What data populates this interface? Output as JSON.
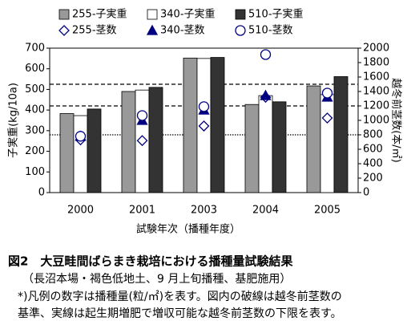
{
  "chart_data": {
    "type": "bar",
    "categories": [
      "2000",
      "2001",
      "2003",
      "2004",
      "2005"
    ],
    "x_label": "試験年次（播種年度）",
    "y_label": "子実重(kg/10a)",
    "y2_label": "越冬前茎数(本/㎡)",
    "ylim": [
      0,
      700
    ],
    "yticks": [
      0,
      100,
      200,
      300,
      400,
      500,
      600,
      700
    ],
    "y2lim": [
      0,
      2000
    ],
    "y2ticks": [
      0,
      200,
      400,
      600,
      800,
      1000,
      1200,
      1400,
      1600,
      1800,
      2000
    ],
    "series": [
      {
        "name": "255-子実重",
        "type": "bar",
        "color": "#999999",
        "values": [
          383,
          490,
          652,
          427,
          517
        ]
      },
      {
        "name": "340-子実重",
        "type": "bar",
        "color": "#ffffff",
        "values": [
          373,
          497,
          650,
          470,
          475
        ]
      },
      {
        "name": "510-子実重",
        "type": "bar",
        "color": "#333333",
        "values": [
          405,
          510,
          655,
          440,
          562
        ]
      },
      {
        "name": "255-茎数",
        "type": "scatter",
        "marker": "diamond",
        "color": "#000080",
        "axis": "y2",
        "values": [
          730,
          720,
          922,
          1320,
          1033
        ]
      },
      {
        "name": "340-茎数",
        "type": "scatter",
        "marker": "triangle",
        "color": "#000080",
        "axis": "y2",
        "values": [
          780,
          1000,
          1144,
          1344,
          1322
        ]
      },
      {
        "name": "510-茎数",
        "type": "scatter",
        "marker": "circle",
        "color": "#000080",
        "axis": "y2",
        "values": [
          780,
          1067,
          1190,
          1911,
          1378
        ]
      }
    ],
    "reference_lines": [
      {
        "axis": "y2",
        "value": 1500,
        "style": "dashed"
      },
      {
        "axis": "y2",
        "value": 1200,
        "style": "dashed"
      },
      {
        "axis": "y2",
        "value": 800,
        "style": "dotted"
      }
    ]
  },
  "caption": [
    "図2　大豆畦間ばらまき栽培における播種量試験結果",
    "（長沼本場・褐色低地土、9 月上旬播種、基肥施用）",
    "*)凡例の数字は播種量(粒/㎡)を表す。図内の破線は越冬前茎数の",
    "基準、実線は起生期増肥で増収可能な越冬前茎数の下限を表す。"
  ]
}
